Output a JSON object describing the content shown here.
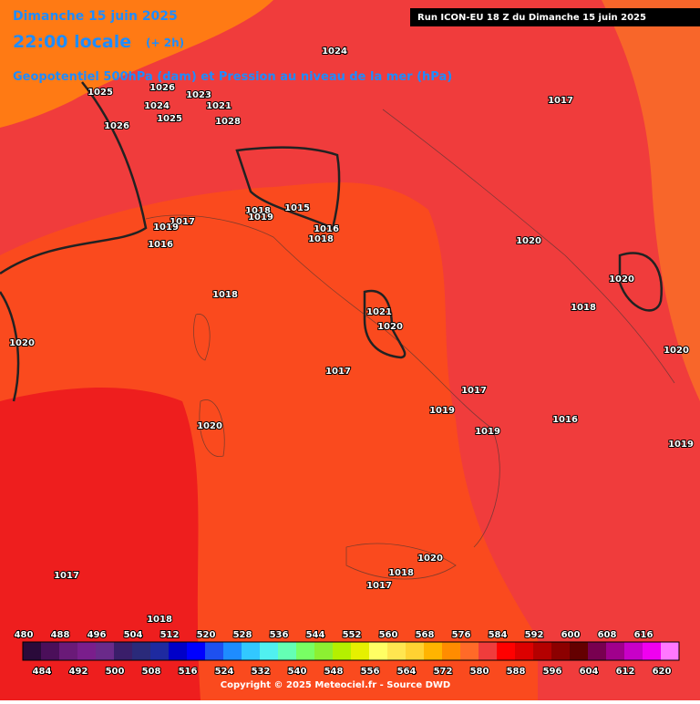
{
  "header": {
    "date": "Dimanche 15 juin 2025",
    "time": "22:00 locale",
    "offset": "(+ 2h)",
    "run": "Run ICON-EU 18 Z du Dimanche 15 juin 2025",
    "subtitle": "Geopotentiel 500hPa (dam) et Pression au niveau de la mer (hPa)"
  },
  "pressure_labels": [
    1024,
    1025,
    1026,
    1024,
    1025,
    1023,
    1021,
    1028,
    1026,
    1017,
    1015,
    1018,
    1019,
    1016,
    1018,
    1017,
    1019,
    1016,
    1020,
    1020,
    1018,
    1018,
    1021,
    1020,
    1020,
    1017,
    1017,
    1019,
    1016,
    1019,
    1019,
    1020,
    1020,
    1017,
    1018,
    1020,
    1017,
    1018
  ],
  "legend": {
    "values": [
      480,
      484,
      488,
      492,
      496,
      500,
      504,
      508,
      512,
      516,
      520,
      524,
      528,
      532,
      536,
      540,
      544,
      548,
      552,
      556,
      560,
      564,
      568,
      572,
      576,
      580,
      584,
      588,
      592,
      596,
      600,
      604,
      608,
      612,
      616,
      620
    ],
    "colors": [
      "#2a0a3a",
      "#4b0f5a",
      "#6a1a78",
      "#7a1e8c",
      "#6a2a8a",
      "#3a1e6a",
      "#2a2a7a",
      "#1e2aa0",
      "#0000c8",
      "#0000ff",
      "#1e50f0",
      "#1e8cff",
      "#32c8ff",
      "#50f0f0",
      "#64ffb4",
      "#78ff64",
      "#8cf032",
      "#b4f000",
      "#e6f000",
      "#ffff64",
      "#ffe650",
      "#ffd232",
      "#ffb400",
      "#ff8c00",
      "#ff6a28",
      "#f03c3c",
      "#ff0000",
      "#dc0000",
      "#b40000",
      "#8c0000",
      "#640000",
      "#780050",
      "#a0008c",
      "#c800c8",
      "#f000f0",
      "#ff78ff"
    ]
  },
  "footer": "Copyright © 2025 Meteociel.fr - Source DWD"
}
